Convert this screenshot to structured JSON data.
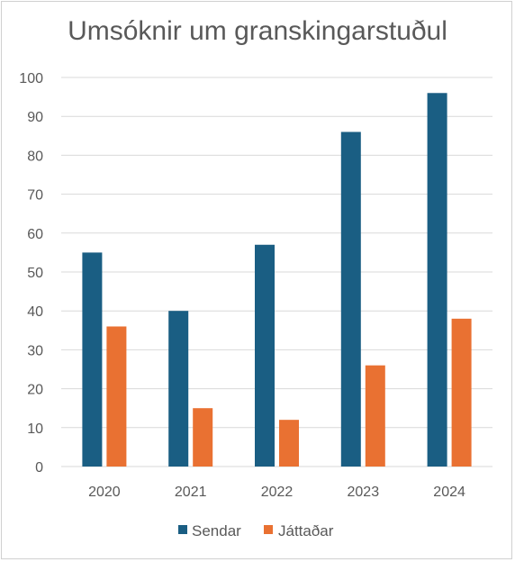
{
  "chart_data": {
    "type": "bar",
    "title": "Umsóknir um granskingarstuðul",
    "categories": [
      "2020",
      "2021",
      "2022",
      "2023",
      "2024"
    ],
    "series": [
      {
        "name": "Sendar",
        "values": [
          55,
          40,
          57,
          86,
          96
        ],
        "color": "#1a5e83"
      },
      {
        "name": "Játtaðar",
        "values": [
          36,
          15,
          12,
          26,
          38
        ],
        "color": "#e97132"
      }
    ],
    "ylim": [
      0,
      100
    ],
    "yticks": [
      "0",
      "10",
      "20",
      "30",
      "40",
      "50",
      "60",
      "70",
      "80",
      "90",
      "100"
    ],
    "grid": true,
    "legend": "bottom"
  }
}
